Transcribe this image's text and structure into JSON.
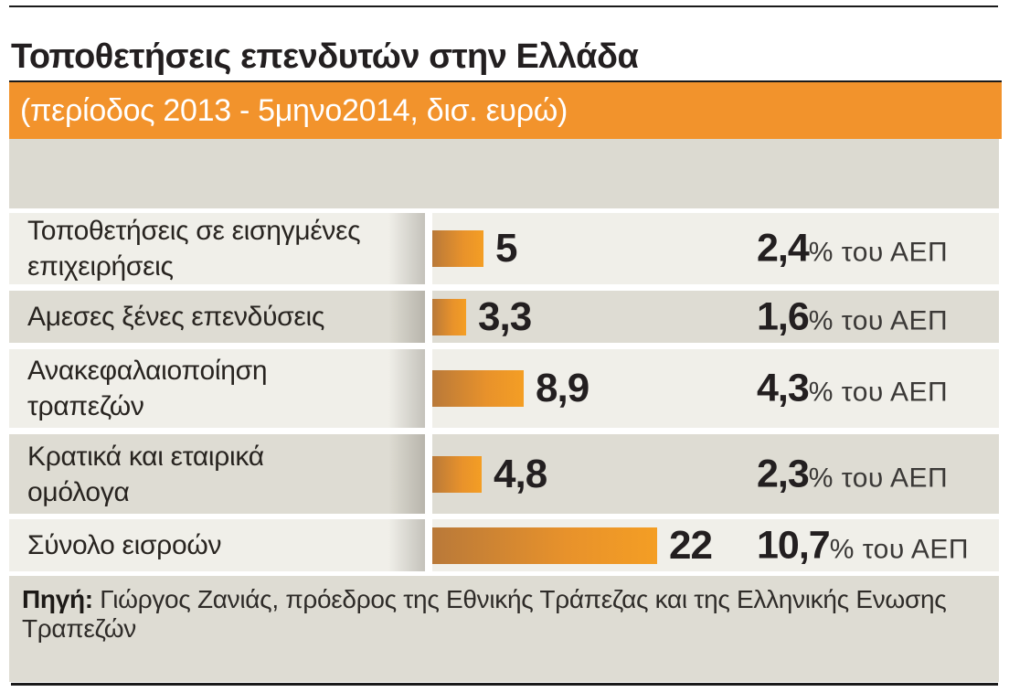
{
  "page": {
    "title": "Τοποθετήσεις επενδυτών στην Ελλάδα",
    "subtitle": "(περίοδος 2013 - 5μηνο2014, δισ. ευρώ)"
  },
  "footer": {
    "source_label": "Πηγή:",
    "source_text": " Γιώργος Ζανιάς, πρόεδρος της Εθνικής Τράπεζας και της Ελληνικής Ενωσης Τραπεζών"
  },
  "colors": {
    "accent_orange": "#F2932C",
    "bar_gradient_left": "#B97939",
    "bar_gradient_right": "#F49E24",
    "row_light": "#F0EFE9",
    "row_dark": "#DEDCD3",
    "beige_band": "#DCDAD1",
    "text_dark": "#231F20",
    "banner_text": "#FFFFFF"
  },
  "chart_data": {
    "type": "bar",
    "orientation": "horizontal",
    "title": "Τοποθετήσεις επενδυτών στην Ελλάδα",
    "subtitle": "(περίοδος 2013 - 5μηνο2014, δισ. ευρώ)",
    "unit": "δισ. ευρώ",
    "xlim": [
      0,
      22
    ],
    "grid": false,
    "legend": false,
    "categories": [
      "Τοποθετήσεις σε εισηγμένες επιχειρήσεις",
      "Αμεσες ξένες επενδύσεις",
      "Ανακεφαλαιοποίηση τραπεζών",
      "Κρατικά και εταιρικά ομόλογα",
      "Σύνολο εισροών"
    ],
    "values": [
      5,
      3.3,
      8.9,
      4.8,
      22
    ],
    "pct_of_gdp": [
      2.4,
      1.6,
      4.3,
      2.3,
      10.7
    ],
    "pct_suffix": "% του ΑΕΠ",
    "source": "Πηγή: Γιώργος Ζανιάς, πρόεδρος της Εθνικής Τράπεζας και της Ελληνικής Ενωσης Τραπεζών"
  },
  "rows": [
    {
      "label": "Τοποθετήσεις σε εισηγμένες\nεπιχειρήσεις",
      "value_label": "5",
      "pct_label": "2,4",
      "pct_suffix": "% του ΑΕΠ"
    },
    {
      "label": "Αμεσες ξένες επενδύσεις",
      "value_label": "3,3",
      "pct_label": "1,6",
      "pct_suffix": "% του ΑΕΠ"
    },
    {
      "label": "Ανακεφαλαιοποίηση\nτραπεζών",
      "value_label": "8,9",
      "pct_label": "4,3",
      "pct_suffix": "% του ΑΕΠ"
    },
    {
      "label": "Κρατικά και εταιρικά\nομόλογα",
      "value_label": "4,8",
      "pct_label": "2,3",
      "pct_suffix": "% του ΑΕΠ"
    },
    {
      "label": "Σύνολο εισροών",
      "value_label": "22",
      "pct_label": "10,7",
      "pct_suffix": "% του ΑΕΠ"
    }
  ]
}
